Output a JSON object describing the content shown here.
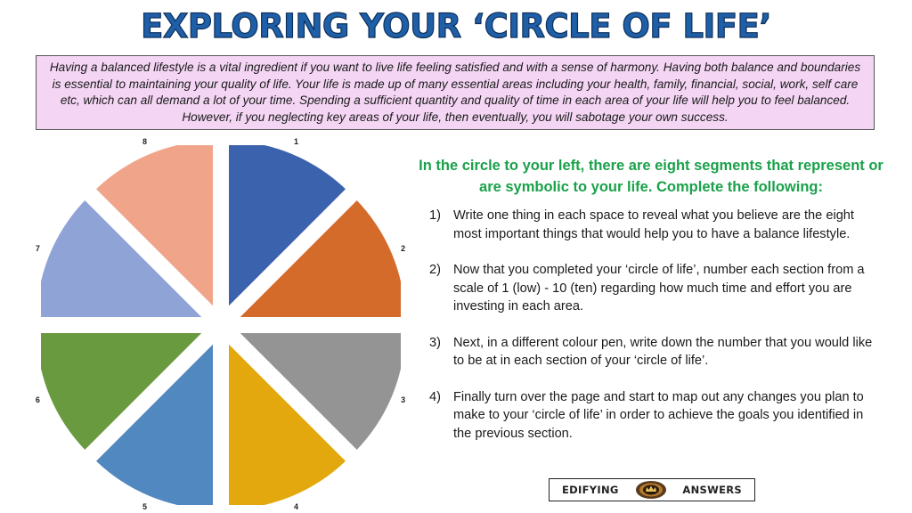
{
  "title": "EXPLORING YOUR ‘CIRCLE OF LIFE’",
  "intro": "Having a balanced lifestyle is a vital ingredient if you want to live life feeling satisfied and with a sense of harmony. Having both balance and boundaries is essential to maintaining your quality of life. Your life is made up of many essential areas including your health, family, financial, social, work, self care etc, which can all demand a lot of your time. Spending a sufficient quantity and quality of time in each area of your life will help you to feel balanced. However, if you neglecting key areas of your life, then eventually, you will sabotage your own success.",
  "circle": {
    "segments": [
      {
        "label": "1",
        "color": "#3a62ad"
      },
      {
        "label": "2",
        "color": "#d56b2b"
      },
      {
        "label": "3",
        "color": "#949494"
      },
      {
        "label": "4",
        "color": "#e3a80d"
      },
      {
        "label": "5",
        "color": "#5288c0"
      },
      {
        "label": "6",
        "color": "#6a9a40"
      },
      {
        "label": "7",
        "color": "#8fa3d6"
      },
      {
        "label": "8",
        "color": "#f0a58a"
      }
    ]
  },
  "instructions": {
    "heading": "In the circle to your left, there are eight segments that represent or are symbolic to your life. Complete the following:",
    "steps": [
      {
        "num": "1)",
        "text": "Write one thing in each space to reveal what you believe are the eight most important things that would help you to have a balance lifestyle."
      },
      {
        "num": "2)",
        "text": "Now that you completed your ‘circle of life’, number each section from a scale of 1 (low) - 10 (ten) regarding how much time and effort you are investing in each area."
      },
      {
        "num": "3)",
        "text": "Next, in a different colour pen, write down the number that you would like to be at in each section of your ‘circle of life’."
      },
      {
        "num": "4)",
        "text": "Finally turn over the page and start to map out any changes you plan to make to your ‘circle of life’ in order to achieve the goals you identified in the previous section."
      }
    ]
  },
  "logo": {
    "left": "EDIFYING",
    "right": "ANSWERS",
    "emblem": "crown-emblem-icon"
  }
}
